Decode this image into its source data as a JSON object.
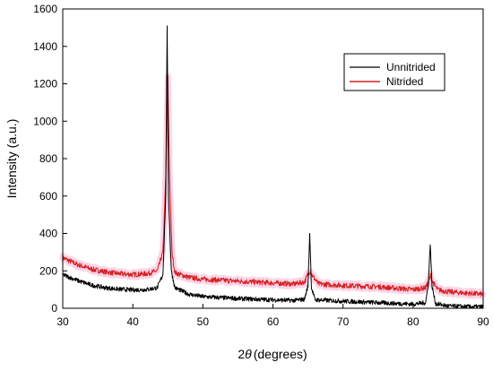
{
  "chart_data": {
    "type": "line",
    "title": "",
    "xlabel": "2θ (degrees)",
    "xlabel_prefix": "2",
    "xlabel_symbol": "θ",
    "xlabel_suffix": "(degrees)",
    "ylabel": "Intensity (a.u.)",
    "xlim": [
      30,
      90
    ],
    "ylim": [
      0,
      1600
    ],
    "xticks": [
      30,
      40,
      50,
      60,
      70,
      80,
      90
    ],
    "yticks": [
      0,
      200,
      400,
      600,
      800,
      1000,
      1200,
      1400,
      1600
    ],
    "grid": false,
    "legend_position": "top-right",
    "series": [
      {
        "name": "Unnitrided",
        "color": "#000000",
        "noise": 12,
        "points": [
          [
            30,
            180
          ],
          [
            32,
            150
          ],
          [
            34,
            125
          ],
          [
            36,
            110
          ],
          [
            38,
            102
          ],
          [
            40,
            98
          ],
          [
            42,
            100
          ],
          [
            43.5,
            110
          ],
          [
            44.3,
            180
          ],
          [
            44.7,
            600
          ],
          [
            44.9,
            1500
          ],
          [
            45.1,
            600
          ],
          [
            45.5,
            200
          ],
          [
            46,
            110
          ],
          [
            48,
            75
          ],
          [
            50,
            62
          ],
          [
            55,
            52
          ],
          [
            60,
            45
          ],
          [
            63,
            42
          ],
          [
            64.5,
            48
          ],
          [
            65.0,
            120
          ],
          [
            65.25,
            400
          ],
          [
            65.5,
            110
          ],
          [
            66,
            45
          ],
          [
            70,
            38
          ],
          [
            75,
            30
          ],
          [
            80,
            22
          ],
          [
            81.8,
            30
          ],
          [
            82.2,
            140
          ],
          [
            82.45,
            350
          ],
          [
            82.7,
            120
          ],
          [
            83.2,
            25
          ],
          [
            85,
            12
          ],
          [
            88,
            8
          ],
          [
            90,
            8
          ]
        ]
      },
      {
        "name": "Nitrided",
        "color": "#d62020",
        "band_color": "#f3a0c8",
        "noise": 14,
        "points": [
          [
            30,
            270
          ],
          [
            32,
            235
          ],
          [
            34,
            210
          ],
          [
            36,
            195
          ],
          [
            38,
            185
          ],
          [
            40,
            180
          ],
          [
            42,
            185
          ],
          [
            43.5,
            200
          ],
          [
            44.3,
            300
          ],
          [
            44.7,
            700
          ],
          [
            45.0,
            1230
          ],
          [
            45.25,
            700
          ],
          [
            45.6,
            300
          ],
          [
            46,
            190
          ],
          [
            48,
            165
          ],
          [
            50,
            155
          ],
          [
            55,
            145
          ],
          [
            60,
            135
          ],
          [
            63,
            130
          ],
          [
            64.5,
            140
          ],
          [
            65.1,
            190
          ],
          [
            65.3,
            200
          ],
          [
            65.7,
            170
          ],
          [
            66.5,
            130
          ],
          [
            70,
            122
          ],
          [
            75,
            115
          ],
          [
            80,
            100
          ],
          [
            81.8,
            110
          ],
          [
            82.3,
            150
          ],
          [
            82.5,
            175
          ],
          [
            82.8,
            140
          ],
          [
            83.5,
            100
          ],
          [
            85,
            88
          ],
          [
            88,
            80
          ],
          [
            90,
            75
          ]
        ]
      }
    ]
  }
}
